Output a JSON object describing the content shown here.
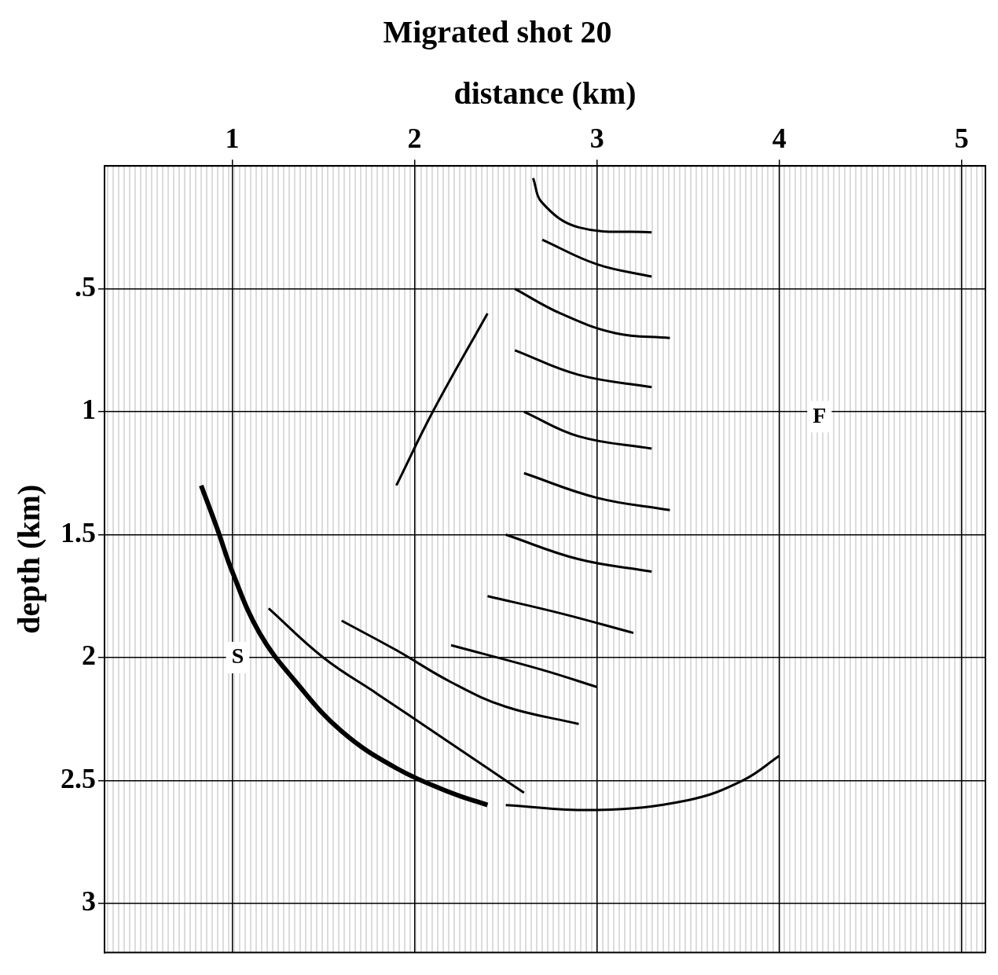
{
  "chart_data": {
    "type": "line",
    "title": "Migrated shot 20",
    "x_label": "distance (km)",
    "y_label": "depth (km)",
    "xlim": [
      0.3,
      5.13
    ],
    "xticks": [
      1,
      2,
      3,
      4,
      5
    ],
    "ylim": [
      3.2,
      0
    ],
    "yticks": [
      {
        "value": 0.5,
        "label": ".5"
      },
      1,
      1.5,
      2,
      2.5,
      3
    ],
    "grid": true,
    "color": "#000000",
    "annotations": [
      {
        "text": "S",
        "x": 1.03,
        "y": 2.0
      },
      {
        "text": "F",
        "x": 4.22,
        "y": 1.02
      }
    ],
    "series": [
      {
        "x": [
          0.83,
          0.92,
          1.0,
          1.15,
          1.35,
          1.6,
          1.9,
          2.2,
          2.4
        ],
        "values": [
          1.3,
          1.48,
          1.65,
          1.9,
          2.1,
          2.3,
          2.45,
          2.55,
          2.6
        ]
      },
      {
        "x": [
          1.2,
          1.5,
          1.8,
          2.1,
          2.4,
          2.6
        ],
        "values": [
          1.8,
          2.0,
          2.15,
          2.3,
          2.45,
          2.55
        ]
      },
      {
        "x": [
          1.6,
          1.9,
          2.2,
          2.5,
          2.9
        ],
        "values": [
          1.85,
          1.97,
          2.1,
          2.2,
          2.27
        ]
      },
      {
        "x": [
          2.5,
          3.0,
          3.5,
          3.8,
          4.0
        ],
        "values": [
          2.6,
          2.62,
          2.58,
          2.5,
          2.4
        ]
      },
      {
        "x": [
          2.65,
          2.7,
          2.9,
          3.3
        ],
        "values": [
          0.05,
          0.15,
          0.25,
          0.27
        ]
      },
      {
        "x": [
          2.7,
          3.0,
          3.3
        ],
        "values": [
          0.3,
          0.4,
          0.45
        ]
      },
      {
        "x": [
          2.55,
          2.8,
          3.1,
          3.4
        ],
        "values": [
          0.5,
          0.6,
          0.68,
          0.7
        ]
      },
      {
        "x": [
          2.55,
          2.9,
          3.3
        ],
        "values": [
          0.75,
          0.85,
          0.9
        ]
      },
      {
        "x": [
          2.6,
          2.9,
          3.3
        ],
        "values": [
          1.0,
          1.1,
          1.15
        ]
      },
      {
        "x": [
          2.6,
          3.0,
          3.4
        ],
        "values": [
          1.25,
          1.35,
          1.4
        ]
      },
      {
        "x": [
          2.5,
          2.9,
          3.3
        ],
        "values": [
          1.5,
          1.6,
          1.65
        ]
      },
      {
        "x": [
          2.4,
          2.8,
          3.2
        ],
        "values": [
          1.75,
          1.82,
          1.9
        ]
      },
      {
        "x": [
          2.2,
          2.7,
          3.0
        ],
        "values": [
          1.95,
          2.05,
          2.12
        ]
      },
      {
        "x": [
          2.4,
          2.1,
          1.9
        ],
        "values": [
          0.6,
          1.0,
          1.3
        ]
      }
    ]
  }
}
